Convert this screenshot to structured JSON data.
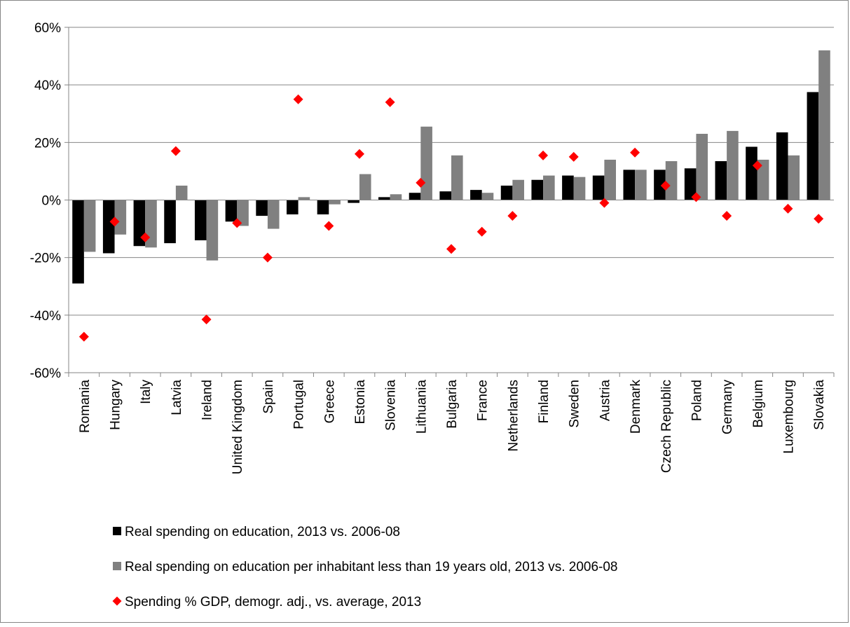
{
  "chart_data": {
    "type": "bar",
    "categories": [
      "Romania",
      "Hungary",
      "Italy",
      "Latvia",
      "Ireland",
      "United Kingdom",
      "Spain",
      "Portugal",
      "Greece",
      "Estonia",
      "Slovenia",
      "Lithuania",
      "Bulgaria",
      "France",
      "Netherlands",
      "Finland",
      "Sweden",
      "Austria",
      "Denmark",
      "Czech Republic",
      "Poland",
      "Germany",
      "Belgium",
      "Luxembourg",
      "Slovakia"
    ],
    "ylim": [
      -60,
      60
    ],
    "yticks": [
      -60,
      -40,
      -20,
      0,
      20,
      40,
      60
    ],
    "ytick_labels": [
      "-60%",
      "-40%",
      "-20%",
      "0%",
      "20%",
      "40%",
      "60%"
    ],
    "grid": true,
    "legend_position": "bottom",
    "series": [
      {
        "name": "Real spending on education, 2013 vs. 2006-08",
        "kind": "bar",
        "color": "#000000",
        "values": [
          -29,
          -18.5,
          -16,
          -15,
          -14,
          -7.5,
          -5.5,
          -5,
          -5,
          -1,
          1,
          2.5,
          3,
          3.5,
          5,
          7,
          8.5,
          8.5,
          10.5,
          10.5,
          11,
          13.5,
          18.5,
          23.5,
          37.5
        ]
      },
      {
        "name": "Real spending on education per inhabitant less than 19 years old, 2013 vs. 2006-08",
        "kind": "bar",
        "color": "#808080",
        "values": [
          -18,
          -12,
          -16.5,
          5,
          -21,
          -9,
          -10,
          1,
          -1.5,
          9,
          2,
          25.5,
          15.5,
          2.5,
          7,
          8.5,
          8,
          14,
          10.5,
          13.5,
          23,
          24,
          14,
          15.5,
          52
        ]
      },
      {
        "name": "Spending % GDP, demogr. adj., vs. average, 2013",
        "kind": "marker",
        "color": "#ff0000",
        "values": [
          -47.5,
          -7.5,
          -13,
          17,
          -41.5,
          -8,
          -20,
          35,
          -9,
          16,
          34,
          6,
          -17,
          -11,
          -5.5,
          15.5,
          15,
          -1,
          16.5,
          5,
          1,
          -5.5,
          12,
          -3,
          -6.5
        ]
      }
    ]
  }
}
